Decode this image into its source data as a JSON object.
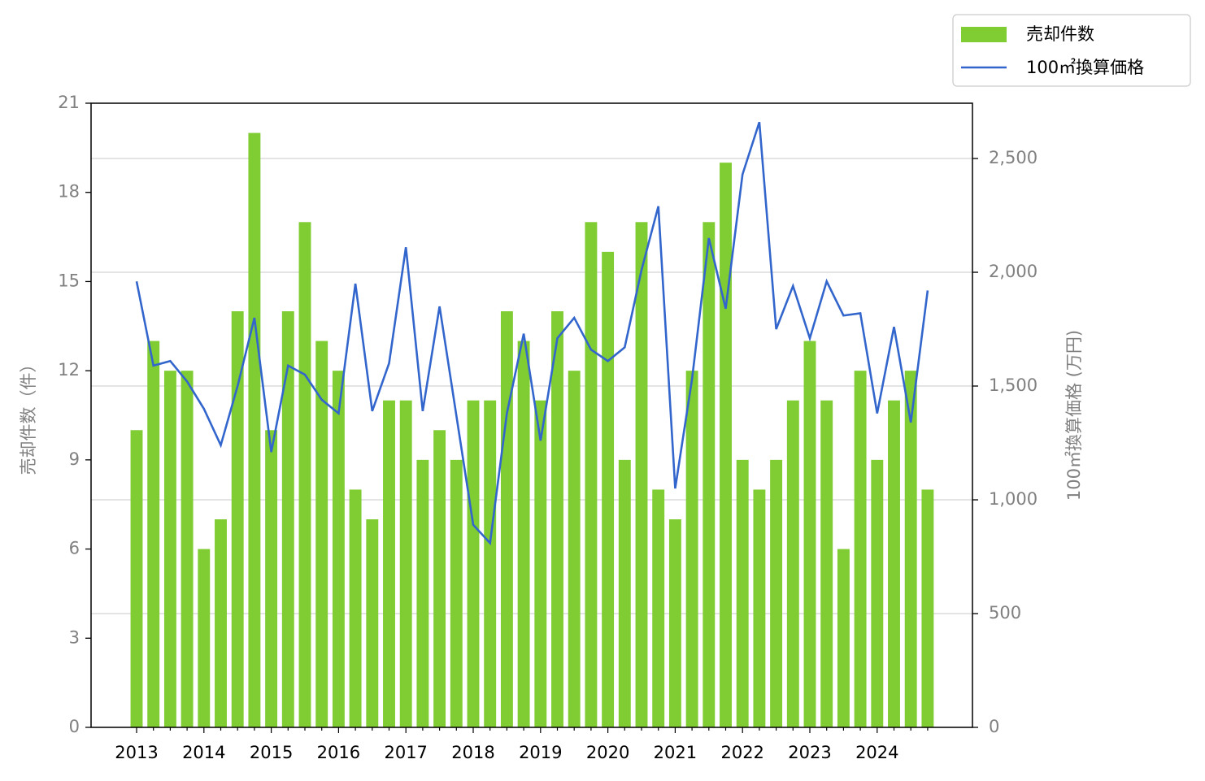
{
  "chart_data": {
    "type": "bar_line",
    "categories": [
      "2013",
      null,
      null,
      null,
      "2014",
      null,
      null,
      null,
      "2015",
      null,
      null,
      null,
      "2016",
      null,
      null,
      null,
      "2017",
      null,
      null,
      null,
      "2018",
      null,
      null,
      null,
      "2019",
      null,
      null,
      null,
      "2020",
      null,
      null,
      null,
      "2021",
      null,
      null,
      null,
      "2022",
      null,
      null,
      null,
      "2023",
      null,
      null,
      null,
      "2024",
      null,
      null,
      null
    ],
    "series": [
      {
        "name": "売却件数",
        "color": "#80cc33",
        "type": "bar",
        "axis": "y",
        "values": [
          10,
          13,
          12,
          12,
          6,
          7,
          14,
          20,
          10,
          14,
          17,
          13,
          12,
          8,
          7,
          11,
          11,
          9,
          10,
          9,
          11,
          11,
          14,
          13,
          11,
          14,
          12,
          17,
          16,
          9,
          17,
          8,
          7,
          12,
          17,
          19,
          9,
          8,
          9,
          11,
          13,
          11,
          6,
          12,
          9,
          11,
          12,
          8
        ]
      },
      {
        "name": "100㎡換算価格",
        "color": "#3366cc",
        "type": "line",
        "axis": "y2",
        "values": [
          1960,
          1590,
          1610,
          1520,
          1400,
          1240,
          1500,
          1800,
          1210,
          1590,
          1550,
          1440,
          1380,
          1950,
          1390,
          1600,
          2110,
          1390,
          1850,
          1370,
          890,
          810,
          1380,
          1730,
          1260,
          1710,
          1800,
          1660,
          1610,
          1670,
          2010,
          2290,
          1050,
          1530,
          2150,
          1840,
          2430,
          2660,
          1750,
          1940,
          1710,
          1960,
          1810,
          1820,
          1380,
          1760,
          1340,
          1920
        ]
      }
    ],
    "ylabel": "売却件数（件）",
    "y2label": "100㎡換算価格 (万円)",
    "ylim": [
      0,
      21
    ],
    "yticks": [
      0,
      3,
      6,
      9,
      12,
      15,
      18,
      21
    ],
    "y2lim": [
      0,
      2743
    ],
    "y2ticks": [
      0,
      500,
      {
        "value": 1000,
        "label": "1,000"
      },
      {
        "value": 1500,
        "label": "1,500"
      },
      {
        "value": 2000,
        "label": "2,000"
      },
      {
        "value": 2500,
        "label": "2,500"
      }
    ],
    "grid": "y2",
    "legend": "upper right"
  }
}
